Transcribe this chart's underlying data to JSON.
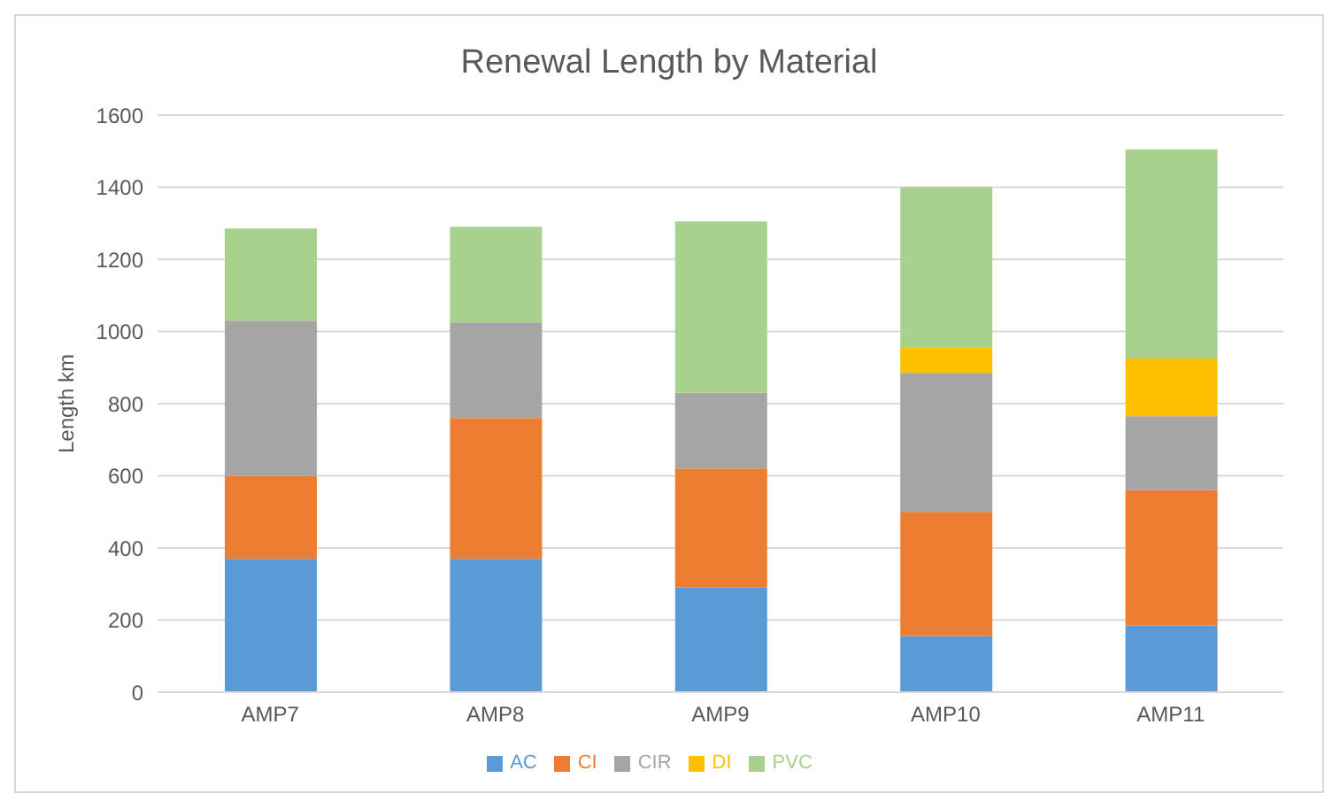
{
  "chart_data": {
    "type": "bar",
    "title": "Renewal Length by Material",
    "ylabel": "Length  km",
    "categories": [
      "AMP7",
      "AMP8",
      "AMP9",
      "AMP10",
      "AMP11"
    ],
    "stacked": true,
    "series": [
      {
        "name": "AC",
        "color": "#5b9bd5",
        "values": [
          370,
          370,
          290,
          155,
          185
        ]
      },
      {
        "name": "CI",
        "color": "#ed7d31",
        "values": [
          230,
          390,
          330,
          345,
          375
        ]
      },
      {
        "name": "CIR",
        "color": "#a5a5a5",
        "values": [
          430,
          265,
          210,
          385,
          205
        ]
      },
      {
        "name": "DI",
        "color": "#ffc000",
        "values": [
          0,
          0,
          0,
          70,
          160
        ]
      },
      {
        "name": "PVC",
        "color": "#a9d18e",
        "values": [
          255,
          265,
          475,
          445,
          580
        ]
      }
    ],
    "ylim": [
      0,
      1600
    ],
    "yticks": [
      0,
      200,
      400,
      600,
      800,
      1000,
      1200,
      1400,
      1600
    ],
    "grid": "y",
    "legend": "bottom"
  }
}
